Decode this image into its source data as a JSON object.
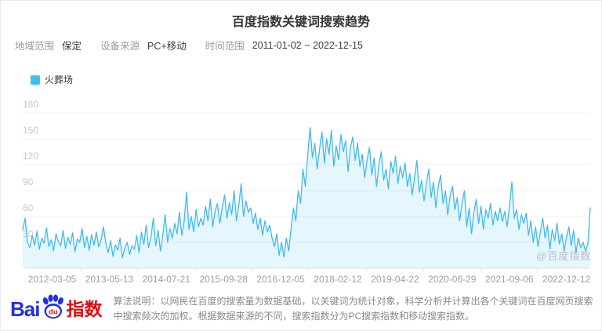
{
  "title": "百度指数关键词搜索趋势",
  "filters": [
    {
      "label": "地域范围",
      "value": "保定"
    },
    {
      "label": "设备来源",
      "value": "PC+移动"
    },
    {
      "label": "时间范围",
      "value": "2011-01-02 ~ 2022-12-15"
    }
  ],
  "legend": {
    "name": "火葬场",
    "color": "#3ec0f0"
  },
  "watermark": "@百度指数",
  "footer": {
    "logo": {
      "bai": "Bai",
      "du": "du",
      "suffix": "指数"
    },
    "description": "算法说明：以网民在百度的搜索量为数据基础，以关键词为统计对象，科学分析并计算出各个关键词在百度网页搜索中搜索频次的加权。根据数据来源的不同，搜索指数分为PC搜索指数和移动搜索指数。"
  },
  "chart_data": {
    "type": "area",
    "title": "百度指数关键词搜索趋势",
    "x_range": [
      "2011-01-02",
      "2022-12-15"
    ],
    "x_tick_labels": [
      "2012-03-05",
      "2013-05-13",
      "2014-07-21",
      "2015-09-28",
      "2016-12-05",
      "2018-02-12",
      "2019-04-22",
      "2020-06-29",
      "2021-09-06",
      "2022-12-12"
    ],
    "y_ticks": [
      30,
      60,
      90,
      120,
      150,
      180
    ],
    "ylim": [
      0,
      180
    ],
    "grid": true,
    "legend_position": "top-left",
    "series": [
      {
        "name": "火葬场",
        "color": "#41baef",
        "fill_color": "rgba(65,186,239,0.13)",
        "values": [
          45,
          58,
          30,
          24,
          38,
          27,
          43,
          22,
          35,
          29,
          47,
          25,
          33,
          20,
          40,
          31,
          26,
          44,
          23,
          36,
          28,
          41,
          19,
          34,
          30,
          46,
          24,
          37,
          21,
          39,
          27,
          42,
          25,
          33,
          48,
          29,
          18,
          32,
          14,
          27,
          21,
          35,
          12,
          24,
          30,
          16,
          26,
          22,
          38,
          18,
          42,
          28,
          50,
          24,
          36,
          58,
          26,
          44,
          20,
          39,
          62,
          30,
          46,
          35,
          52,
          40,
          65,
          38,
          55,
          88,
          45,
          60,
          42,
          68,
          48,
          58,
          50,
          72,
          55,
          80,
          48,
          66,
          75,
          52,
          70,
          85,
          58,
          76,
          62,
          90,
          55,
          73,
          98,
          60,
          78,
          65,
          70,
          52,
          64,
          45,
          58,
          38,
          55,
          42,
          50,
          35,
          25,
          40,
          15,
          30,
          13,
          35,
          20,
          45,
          70,
          55,
          90,
          75,
          115,
          95,
          130,
          163,
          128,
          145,
          115,
          138,
          158,
          122,
          150,
          132,
          160,
          118,
          142,
          126,
          155,
          135,
          148,
          112,
          140,
          152,
          125,
          145,
          118,
          132,
          105,
          125,
          140,
          108,
          128,
          95,
          120,
          135,
          102,
          115,
          92,
          124,
          110,
          130,
          98,
          118,
          105,
          122,
          95,
          110,
          85,
          105,
          125,
          88,
          102,
          78,
          98,
          115,
          82,
          100,
          70,
          95,
          108,
          75,
          90,
          62,
          85,
          95,
          68,
          82,
          55,
          75,
          90,
          48,
          70,
          40,
          65,
          80,
          52,
          72,
          45,
          68,
          58,
          75,
          50,
          66,
          55,
          70,
          54,
          66,
          48,
          72,
          100,
          58,
          68,
          45,
          62,
          52,
          64,
          38,
          55,
          30,
          48,
          25,
          42,
          58,
          35,
          50,
          22,
          45,
          32,
          52,
          28,
          40,
          20,
          36,
          48,
          26,
          44,
          18,
          35,
          24,
          30,
          20,
          28,
          70
        ]
      }
    ]
  }
}
